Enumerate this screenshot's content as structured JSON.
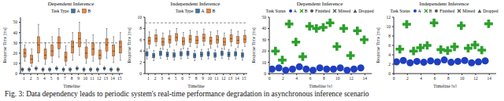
{
  "caption": "Fig. 3: Data dependency leads to periodic system's real-time performance degradation in asynchronous inference scenario",
  "chart_data": [
    {
      "type": "box",
      "title": "Dependent Inference",
      "x_label": "Timeline",
      "y_label": "Response Time [ms]",
      "legend_title": "Task Type",
      "categories": [
        "1",
        "2",
        "3",
        "4",
        "5",
        "6",
        "7",
        "8",
        "9",
        "10",
        "11",
        "12",
        "13",
        "14",
        "15"
      ],
      "ylim": [
        0,
        55
      ],
      "yticks": [
        0,
        10,
        20,
        30,
        40,
        50
      ],
      "thresholds": [
        30
      ],
      "series": [
        {
          "name": "A",
          "color": "#3b75af",
          "min": [
            2,
            2,
            3,
            2,
            2,
            3,
            2,
            2,
            3,
            2,
            2,
            2,
            3,
            2,
            2
          ],
          "q1": [
            3,
            3,
            4,
            3,
            3,
            4,
            3,
            3,
            4,
            3,
            3,
            3,
            4,
            3,
            3
          ],
          "median": [
            4,
            4,
            5,
            4,
            4,
            5,
            4,
            4,
            5,
            4,
            4,
            4,
            5,
            4,
            4
          ],
          "q3": [
            5,
            5,
            6,
            5,
            5,
            6,
            5,
            5,
            6,
            5,
            5,
            5,
            6,
            5,
            5
          ],
          "max": [
            6,
            6,
            7,
            6,
            6,
            7,
            6,
            6,
            7,
            6,
            6,
            6,
            7,
            6,
            6
          ]
        },
        {
          "name": "B",
          "color": "#ef8636",
          "min": [
            12,
            7,
            12,
            9,
            11,
            16,
            8,
            13,
            18,
            10,
            12,
            9,
            15,
            11,
            13
          ],
          "q1": [
            16,
            10,
            20,
            14,
            17,
            24,
            12,
            20,
            26,
            15,
            18,
            14,
            22,
            17,
            20
          ],
          "median": [
            20,
            14,
            28,
            18,
            22,
            30,
            16,
            26,
            34,
            20,
            24,
            18,
            28,
            22,
            26
          ],
          "q3": [
            24,
            18,
            36,
            24,
            28,
            36,
            21,
            32,
            40,
            26,
            30,
            23,
            34,
            28,
            32
          ],
          "max": [
            28,
            24,
            48,
            30,
            36,
            44,
            27,
            40,
            50,
            33,
            38,
            30,
            44,
            36,
            40
          ]
        }
      ]
    },
    {
      "type": "box",
      "title": "Independent Inference",
      "x_label": "Timeline",
      "y_label": "Response Time [ms]",
      "legend_title": "Task Type",
      "categories": [
        "1",
        "2",
        "3",
        "4",
        "5",
        "6",
        "7",
        "8",
        "9",
        "10",
        "11",
        "12",
        "13",
        "14",
        "15"
      ],
      "ylim": [
        0,
        10
      ],
      "yticks": [
        0,
        2,
        4,
        6,
        8,
        10
      ],
      "thresholds": [
        9
      ],
      "series": [
        {
          "name": "A",
          "color": "#3b75af",
          "min": [
            2.6,
            2.3,
            2.7,
            2.5,
            2.4,
            2.6,
            2.7,
            2.3,
            2.5,
            2.6,
            2.4,
            2.7,
            2.5,
            2.6,
            2.4
          ],
          "q1": [
            3.1,
            2.8,
            3.2,
            3.0,
            2.9,
            3.1,
            3.2,
            2.8,
            3.0,
            3.1,
            2.9,
            3.2,
            3.0,
            3.1,
            2.9
          ],
          "median": [
            3.5,
            3.2,
            3.6,
            3.4,
            3.3,
            3.5,
            3.6,
            3.2,
            3.4,
            3.5,
            3.3,
            3.6,
            3.4,
            3.5,
            3.3
          ],
          "q3": [
            3.9,
            3.6,
            4.0,
            3.8,
            3.7,
            3.9,
            4.0,
            3.6,
            3.8,
            3.9,
            3.7,
            4.0,
            3.8,
            3.9,
            3.7
          ],
          "max": [
            4.4,
            4.1,
            4.5,
            4.3,
            4.2,
            4.4,
            4.5,
            4.1,
            4.3,
            4.4,
            4.2,
            4.5,
            4.3,
            4.4,
            4.2
          ]
        },
        {
          "name": "B",
          "color": "#ef8636",
          "min": [
            4.5,
            4.9,
            4.3,
            4.7,
            5.1,
            4.4,
            4.8,
            4.6,
            5.0,
            4.5,
            4.7,
            4.3,
            4.9,
            4.6,
            4.8
          ],
          "q1": [
            5.2,
            5.6,
            5.0,
            5.4,
            5.8,
            5.1,
            5.5,
            5.3,
            5.7,
            5.2,
            5.4,
            5.0,
            5.6,
            5.3,
            5.5
          ],
          "median": [
            5.8,
            6.2,
            5.6,
            6.0,
            6.4,
            5.7,
            6.1,
            5.9,
            6.3,
            5.8,
            6.0,
            5.6,
            6.2,
            5.9,
            6.1
          ],
          "q3": [
            6.5,
            6.9,
            6.3,
            6.7,
            7.1,
            6.4,
            6.8,
            6.6,
            7.0,
            6.5,
            6.7,
            6.3,
            6.9,
            6.6,
            6.8
          ],
          "max": [
            7.4,
            7.8,
            7.2,
            7.6,
            8.0,
            7.3,
            7.7,
            7.5,
            7.9,
            7.4,
            7.6,
            7.2,
            7.8,
            7.5,
            7.7
          ]
        }
      ]
    },
    {
      "type": "scatter",
      "title": "Dependent Inference",
      "x_label": "Timeline [s]",
      "y_label": "Response Time [ms]",
      "legend_title": "Task Status",
      "status_labels": [
        "Finished",
        "Missed",
        "Dropped"
      ],
      "xlim": [
        0,
        15
      ],
      "xticks": [
        0,
        2,
        4,
        6,
        8,
        10,
        12,
        14
      ],
      "ylim": [
        0,
        50
      ],
      "yticks": [
        0,
        10,
        20,
        30,
        40,
        50
      ],
      "series": [
        {
          "name": "A",
          "color": "#1f3fbf",
          "marker": "circle",
          "x": [
            0.4,
            1.4,
            2.4,
            3.4,
            4.4,
            5.4,
            6.4,
            7.4,
            8.4,
            9.4,
            10.4,
            11.4,
            12.4,
            13.4
          ],
          "values": [
            4,
            5,
            3,
            4,
            6,
            4,
            3,
            5,
            4,
            4,
            5,
            3,
            4,
            5
          ]
        },
        {
          "name": "B",
          "color": "#2ca02c",
          "marker": "cross",
          "x": [
            0.9,
            1.9,
            2.9,
            3.9,
            4.9,
            5.9,
            6.9,
            7.9,
            8.9,
            9.9,
            10.9,
            11.9,
            12.9,
            13.9
          ],
          "values": [
            20,
            12,
            44,
            28,
            15,
            42,
            40,
            41,
            45,
            24,
            40,
            16,
            38,
            30
          ]
        }
      ]
    },
    {
      "type": "scatter",
      "title": "Independent Inference",
      "x_label": "Timeline [s]",
      "y_label": "Response Time [ms]",
      "legend_title": "Task Status",
      "status_labels": [
        "Finished",
        "Missed",
        "Dropped"
      ],
      "xlim": [
        0,
        15
      ],
      "xticks": [
        0,
        2,
        4,
        6,
        8,
        10,
        12,
        14
      ],
      "ylim": [
        0,
        12
      ],
      "yticks": [
        0,
        2,
        4,
        6,
        8,
        10,
        12
      ],
      "series": [
        {
          "name": "A",
          "color": "#1f3fbf",
          "marker": "circle",
          "x": [
            0.4,
            1.4,
            2.4,
            3.4,
            4.4,
            5.4,
            6.4,
            7.4,
            8.4,
            9.4,
            10.4,
            11.4,
            12.4,
            13.4
          ],
          "values": [
            2.5,
            2.8,
            2.3,
            2.6,
            2.4,
            2.7,
            2.5,
            2.9,
            2.4,
            2.6,
            2.8,
            2.3,
            2.5,
            2.7
          ]
        },
        {
          "name": "B",
          "color": "#2ca02c",
          "marker": "cross",
          "x": [
            0.9,
            1.9,
            2.9,
            3.9,
            4.9,
            5.9,
            6.9,
            7.9,
            8.9,
            9.9,
            10.9,
            11.9,
            12.9,
            13.9
          ],
          "values": [
            5.2,
            10.5,
            4.8,
            5.5,
            6.0,
            10.8,
            5.1,
            4.9,
            5.7,
            10.2,
            5.4,
            6.1,
            5.0,
            10.6
          ]
        }
      ]
    }
  ]
}
